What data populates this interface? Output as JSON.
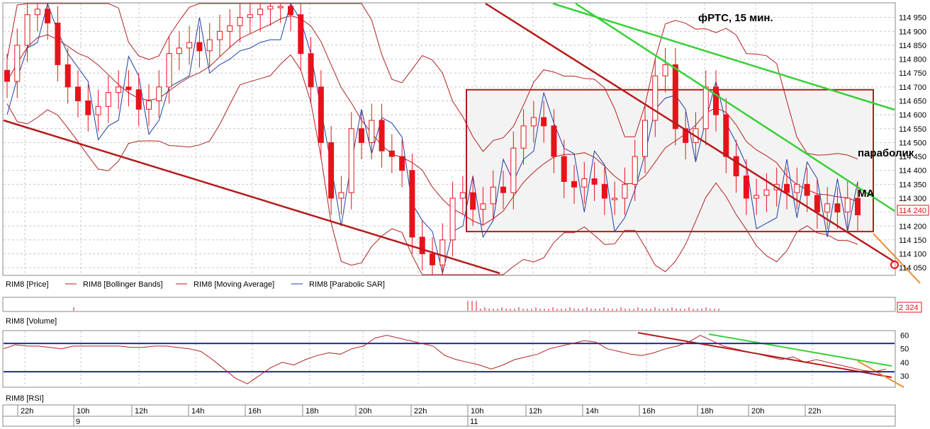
{
  "colors": {
    "candle": "#e8121b",
    "bollinger": "#b22222",
    "moving_average": "#b22222",
    "parabolic_sar": "#1f3ea8",
    "trend_red": "#b51b1b",
    "trend_green": "#39d039",
    "projection": "#f08a2c",
    "grid": "#c8c8c8",
    "rsi_level": "#1f2a9a"
  },
  "chart_data": [
    {
      "type": "candlestick",
      "title": "фРТС, 15 мин.",
      "series_name": "RIM8 [Price]",
      "ylim": [
        114025,
        115000
      ],
      "y_ticks": [
        114050,
        114100,
        114150,
        114200,
        114250,
        114300,
        114350,
        114400,
        114450,
        114500,
        114550,
        114600,
        114650,
        114700,
        114750,
        114800,
        114850,
        114900,
        114950
      ],
      "y_tick_labels": [
        "114 050",
        "114 100",
        "114 150",
        "114 200",
        "114 250",
        "114 300",
        "114 350",
        "114 400",
        "114 450",
        "114 500",
        "114 550",
        "114 600",
        "114 650",
        "114 700",
        "114 750",
        "114 800",
        "114 850",
        "114 900",
        "114 950"
      ],
      "last_price_label": "114 240",
      "annotations": [
        "параболик",
        "MA"
      ],
      "legend": [
        {
          "name": "RIM8 [Price]",
          "color": "#000000"
        },
        {
          "name": "RIM8 [Bollinger Bands]",
          "color": "#b22222"
        },
        {
          "name": "RIM8 [Moving Average]",
          "color": "#b22222"
        },
        {
          "name": "RIM8 [Parabolic SAR]",
          "color": "#1f3ea8"
        }
      ],
      "candles_close": [
        114720,
        114850,
        114960,
        114980,
        114930,
        114780,
        114700,
        114650,
        114600,
        114630,
        114680,
        114700,
        114690,
        114620,
        114650,
        114700,
        114820,
        114840,
        114860,
        114830,
        114870,
        114900,
        114920,
        114950,
        114960,
        114980,
        114990,
        114990,
        114960,
        114820,
        114700,
        114500,
        114300,
        114320,
        114550,
        114500,
        114580,
        114470,
        114450,
        114400,
        114160,
        114100,
        114060,
        114150,
        114300,
        114320,
        114260,
        114280,
        114340,
        114320,
        114480,
        114560,
        114590,
        114560,
        114450,
        114360,
        114340,
        114370,
        114350,
        114300,
        114300,
        114350,
        114450,
        114580,
        114740,
        114780,
        114550,
        114500,
        114550,
        114700,
        114600,
        114450,
        114380,
        114300,
        114310,
        114330,
        114350,
        114320,
        114350,
        114310,
        114250,
        114280,
        114250,
        114300,
        114240
      ],
      "channel": {
        "low": 114180,
        "high": 114690
      }
    },
    {
      "type": "bar",
      "series_name": "RIM8 [Volume]",
      "last_value_label": "2 324"
    },
    {
      "type": "line",
      "series_name": "RIM8 [RSI]",
      "ylim": [
        22,
        63
      ],
      "y_ticks": [
        30,
        40,
        50,
        60
      ],
      "levels": [
        33,
        54
      ],
      "values": [
        50,
        53,
        52,
        52,
        51,
        50,
        52,
        52,
        52,
        52,
        52,
        51,
        51,
        52,
        52,
        51,
        50,
        48,
        42,
        35,
        28,
        24,
        30,
        36,
        40,
        38,
        42,
        45,
        47,
        46,
        50,
        52,
        58,
        60,
        58,
        56,
        54,
        52,
        45,
        42,
        40,
        38,
        35,
        38,
        42,
        44,
        46,
        50,
        52,
        54,
        56,
        55,
        50,
        48,
        46,
        45,
        47,
        50,
        52,
        55,
        60,
        56,
        52,
        50,
        48,
        46,
        44,
        42,
        44,
        40,
        42,
        40,
        38,
        36,
        34,
        33,
        35
      ]
    }
  ],
  "x_axis": {
    "hours": [
      "22h",
      "10h",
      "12h",
      "14h",
      "16h",
      "18h",
      "20h",
      "22h",
      "10h",
      "12h",
      "14h",
      "16h",
      "18h",
      "20h",
      "22h"
    ],
    "days": [
      "9",
      "11"
    ]
  }
}
